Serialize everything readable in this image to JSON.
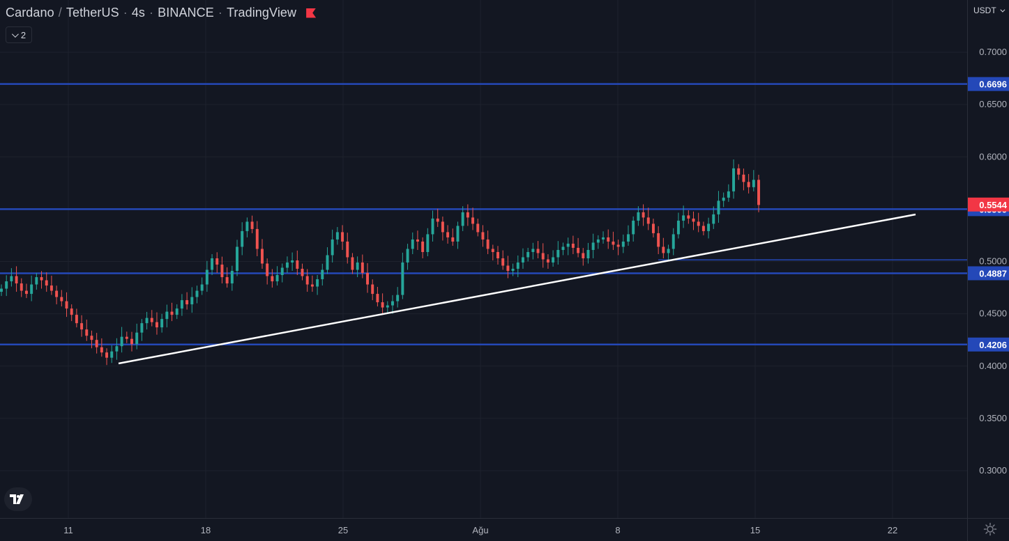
{
  "header": {
    "symbol": "Cardano",
    "quote": "TetherUS",
    "separator": "/",
    "interval": "4s",
    "exchange": "BINANCE",
    "source": "TradingView",
    "collapse_count": "2",
    "currency": "USDT"
  },
  "price_axis": {
    "ticks": [
      "0.7000",
      "0.6500",
      "0.6000",
      "0.5500",
      "0.5000",
      "0.4500",
      "0.4000",
      "0.3500",
      "0.3000"
    ],
    "tick_values": [
      0.7,
      0.65,
      0.6,
      0.55,
      0.5,
      0.45,
      0.4,
      0.35,
      0.3
    ]
  },
  "time_axis": {
    "labels": [
      "11",
      "18",
      "25",
      "Ağu",
      "8",
      "15",
      "22"
    ]
  },
  "colors": {
    "background": "#131722",
    "grid": "#1e222d",
    "text": "#d1d4dc",
    "up": "#26a69a",
    "down": "#ef5350",
    "level": "#2448b8",
    "last_price": "#f23645",
    "trendline": "#ffffff"
  },
  "levels": [
    {
      "label": "0.6696",
      "value": 0.6696
    },
    {
      "label": "0.5500",
      "value": 0.55
    },
    {
      "label": "0.4887",
      "value": 0.4887
    },
    {
      "label": "0.4206",
      "value": 0.4206
    }
  ],
  "last_price": {
    "label": "0.5544",
    "value": 0.5544
  },
  "chart_data": {
    "type": "candlestick",
    "title": "Cardano / TetherUS · 4s · BINANCE · TradingView",
    "ylim": [
      0.28,
      0.73
    ],
    "x_tick_labels": [
      "11",
      "18",
      "25",
      "Ağu",
      "8",
      "15",
      "22"
    ],
    "horizontal_levels": [
      0.6696,
      0.55,
      0.4887,
      0.4206,
      0.5015
    ],
    "trendlines": [
      {
        "from": {
          "bar": 12,
          "price": 0.402
        },
        "to": {
          "bar": 155,
          "price": 0.546
        }
      }
    ],
    "candles_close": [
      0.474,
      0.481,
      0.486,
      0.479,
      0.472,
      0.469,
      0.478,
      0.485,
      0.482,
      0.477,
      0.472,
      0.466,
      0.462,
      0.455,
      0.449,
      0.441,
      0.435,
      0.429,
      0.425,
      0.418,
      0.413,
      0.408,
      0.414,
      0.419,
      0.428,
      0.426,
      0.421,
      0.432,
      0.441,
      0.446,
      0.442,
      0.437,
      0.445,
      0.452,
      0.449,
      0.455,
      0.463,
      0.459,
      0.466,
      0.472,
      0.478,
      0.492,
      0.503,
      0.497,
      0.485,
      0.479,
      0.491,
      0.514,
      0.529,
      0.538,
      0.531,
      0.512,
      0.498,
      0.486,
      0.481,
      0.487,
      0.494,
      0.499,
      0.501,
      0.493,
      0.486,
      0.478,
      0.476,
      0.483,
      0.492,
      0.506,
      0.521,
      0.528,
      0.519,
      0.504,
      0.492,
      0.499,
      0.489,
      0.478,
      0.469,
      0.461,
      0.456,
      0.458,
      0.462,
      0.468,
      0.499,
      0.512,
      0.521,
      0.519,
      0.509,
      0.526,
      0.541,
      0.538,
      0.528,
      0.523,
      0.519,
      0.534,
      0.547,
      0.542,
      0.536,
      0.528,
      0.521,
      0.512,
      0.509,
      0.503,
      0.496,
      0.491,
      0.493,
      0.499,
      0.504,
      0.509,
      0.512,
      0.508,
      0.502,
      0.499,
      0.504,
      0.511,
      0.514,
      0.517,
      0.513,
      0.508,
      0.503,
      0.511,
      0.518,
      0.521,
      0.523,
      0.519,
      0.516,
      0.514,
      0.519,
      0.526,
      0.539,
      0.547,
      0.542,
      0.536,
      0.527,
      0.514,
      0.508,
      0.512,
      0.526,
      0.539,
      0.544,
      0.541,
      0.538,
      0.534,
      0.529,
      0.536,
      0.545,
      0.558,
      0.561,
      0.567,
      0.589,
      0.583,
      0.576,
      0.571,
      0.578,
      0.554
    ],
    "x_range_bars": [
      0,
      200
    ]
  }
}
